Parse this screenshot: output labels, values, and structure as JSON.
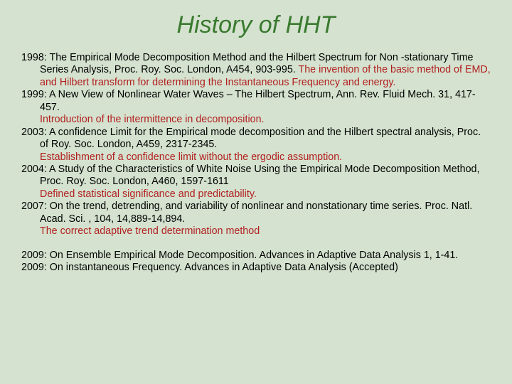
{
  "title": "History of HHT",
  "colors": {
    "background": "#d4e2cf",
    "title": "#3a7a2f",
    "body": "#000000",
    "highlight": "#b22020"
  },
  "typography": {
    "title_font": "Arial",
    "title_style": "italic",
    "title_size_pt": 26,
    "body_font": "Arial",
    "body_size_pt": 11
  },
  "entries_a": [
    {
      "lead": "1998: The Empirical Mode Decomposition Method and the Hilbert Spectrum for Non -stationary Time Series Analysis,  Proc. Roy. Soc. London, A454, 903-995. ",
      "highlight": "The invention of the basic method of EMD, and Hilbert transform for determining the Instantaneous Frequency and energy."
    },
    {
      "lead": "1999: A New View of Nonlinear Water Waves – The Hilbert Spectrum, Ann. Rev. Fluid Mech.  31, 417-457.",
      "highlight": "Introduction of the intermittence in decomposition."
    },
    {
      "lead": "2003:  A confidence Limit for the Empirical mode decomposition and the Hilbert spectral analysis, Proc. of Roy. Soc. London, A459, 2317-2345.",
      "highlight": "Establishment of a confidence limit without the ergodic assumption."
    },
    {
      "lead": "2004: A Study of the Characteristics of White Noise Using the Empirical Mode Decomposition Method, Proc. Roy. Soc. London, A460, 1597-1611",
      "highlight": "Defined statistical significance and predictability."
    },
    {
      "lead": "2007: On the trend, detrending, and variability of nonlinear and nonstationary time series.  Proc. Natl. Acad. Sci. , 104, 14,889-14,894.",
      "highlight": "The correct adaptive trend determination method"
    }
  ],
  "entries_b": [
    {
      "lead": "2009:  On Ensemble Empirical Mode Decomposition.  Advances in Adaptive Data Analysis 1, 1-41.",
      "highlight": ""
    },
    {
      "lead": "2009:  On instantaneous Frequency.  Advances in Adaptive Data Analysis (Accepted)",
      "highlight": ""
    }
  ]
}
